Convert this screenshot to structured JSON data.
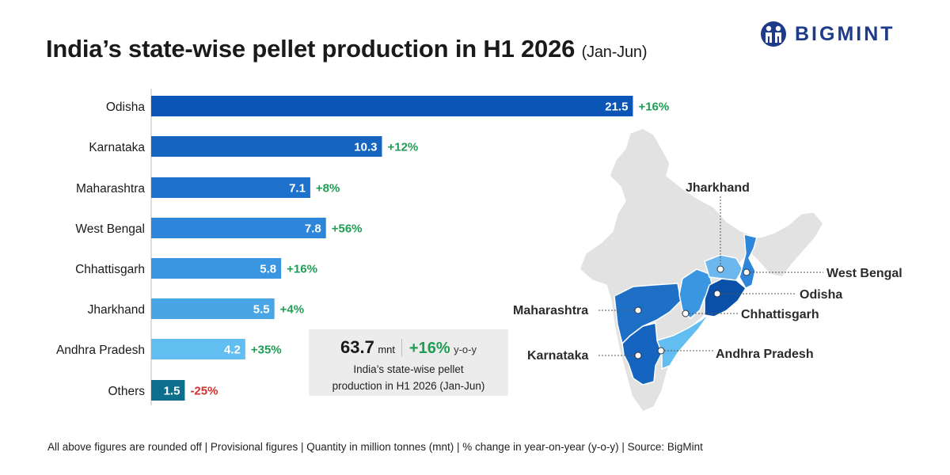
{
  "header": {
    "title": "India’s state-wise pellet production in H1 2026",
    "title_suffix": "(Jan-Jun)",
    "brand": "BIGMINT"
  },
  "colors": {
    "positive": "#1f9d55",
    "negative": "#d32f2f",
    "brand": "#1e3a8a"
  },
  "chart_data": {
    "type": "bar",
    "orientation": "horizontal",
    "categories": [
      "Odisha",
      "Karnataka",
      "Maharashtra",
      "West Bengal",
      "Chhattisgarh",
      "Jharkhand",
      "Andhra Pradesh",
      "Others"
    ],
    "values": [
      21.5,
      10.3,
      7.1,
      7.8,
      5.8,
      5.5,
      4.2,
      1.5
    ],
    "changes": [
      "+16%",
      "+12%",
      "+8%",
      "+56%",
      "+16%",
      "+4%",
      "+35%",
      "-25%"
    ],
    "bar_colors": [
      "#0a55b5",
      "#1565c0",
      "#1e72cc",
      "#2d86d9",
      "#3a96e0",
      "#4aa5e6",
      "#62bdf0",
      "#0e6f8c"
    ],
    "unit": "mnt"
  },
  "summary": {
    "total": "63.7",
    "unit": "mnt",
    "change": "+16%",
    "change_label": "y-o-y",
    "desc_line1": "India’s state-wise pellet",
    "desc_line2": "production in H1 2026 (Jan-Jun)"
  },
  "map": {
    "labels": [
      "Jharkhand",
      "West Bengal",
      "Odisha",
      "Maharashtra",
      "Chhattisgarh",
      "Karnataka",
      "Andhra Pradesh"
    ],
    "icon": "india-map"
  },
  "footer": {
    "note": "All above figures are rounded off  |  Provisional figures  |  Quantity in million tonnes (mnt)  |  % change in year-on-year (y-o-y)  |  Source: BigMint"
  }
}
